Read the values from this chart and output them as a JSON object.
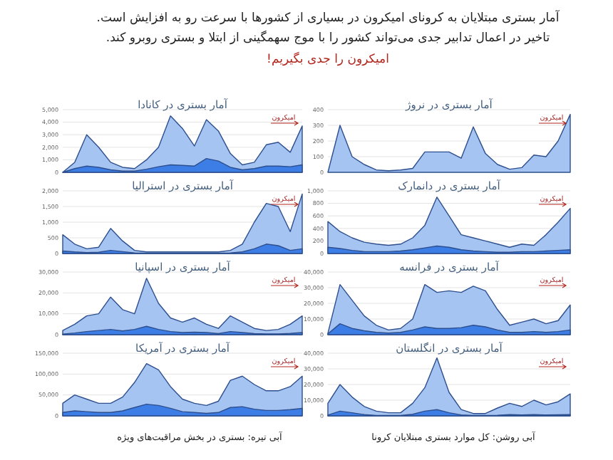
{
  "chart_data": [
    {
      "type": "other",
      "title": "آمار بستری مبتلایان به کرونای امیکرون در بسیاری از کشورها با سرعت رو به افزایش است.",
      "subtitle": "تاخیر در اعمال تدابیر جدی می‌تواند کشور را با موج سهمگینی از ابتلا و بستری روبرو کند.",
      "annotations": [
        "امیکرون را جدی بگیریم!",
        "آبی روشن: کل موارد بستری مبتلایان کرونا",
        "آبی تیره: بستری در بخش مراقبت‌های ویژه"
      ]
    },
    {
      "type": "area",
      "title": "آمار بستری در نروژ",
      "annotations": [
        "امیکرون"
      ],
      "grid": "y",
      "categories": [
        null,
        null,
        null,
        null,
        null,
        null,
        null,
        null,
        null,
        null,
        null,
        null,
        null,
        null,
        null,
        null,
        null,
        null,
        null,
        null,
        null
      ],
      "ylim": [
        0,
        400
      ],
      "yticks": [
        0,
        100,
        200,
        300,
        400
      ],
      "series": [
        {
          "color": "#a6c4f2",
          "values": [
            0,
            300,
            100,
            50,
            15,
            10,
            15,
            25,
            130,
            130,
            130,
            90,
            290,
            120,
            50,
            20,
            30,
            110,
            100,
            200,
            370
          ]
        }
      ]
    },
    {
      "type": "area",
      "title": "آمار بستری در کانادا",
      "annotations": [
        "امیکرون"
      ],
      "grid": "y",
      "categories": [
        null,
        null,
        null,
        null,
        null,
        null,
        null,
        null,
        null,
        null,
        null,
        null,
        null,
        null,
        null,
        null,
        null,
        null,
        null,
        null,
        null
      ],
      "ylim": [
        0,
        5000
      ],
      "yticks": [
        0,
        {
          "value": 1000,
          "label": "1,000"
        },
        {
          "value": 2000,
          "label": "2,000"
        },
        {
          "value": 3000,
          "label": "3,000"
        },
        {
          "value": 4000,
          "label": "4,000"
        },
        {
          "value": 5000,
          "label": "5,000"
        }
      ],
      "series": [
        {
          "color": "#a6c4f2",
          "values": [
            0,
            800,
            3000,
            2000,
            800,
            400,
            300,
            1000,
            2000,
            4500,
            3500,
            2100,
            4200,
            3300,
            1500,
            600,
            800,
            2200,
            2400,
            1600,
            3700
          ]
        },
        {
          "color": "#3d7ee6",
          "values": [
            0,
            300,
            500,
            400,
            200,
            100,
            100,
            250,
            450,
            600,
            550,
            500,
            1100,
            900,
            400,
            200,
            300,
            500,
            500,
            450,
            600
          ]
        }
      ]
    },
    {
      "type": "area",
      "title": "آمار بستری در دانمارک",
      "annotations": [
        "امیکرون"
      ],
      "grid": "y",
      "categories": [
        null,
        null,
        null,
        null,
        null,
        null,
        null,
        null,
        null,
        null,
        null,
        null,
        null,
        null,
        null,
        null,
        null,
        null,
        null,
        null,
        null
      ],
      "ylim": [
        0,
        1000
      ],
      "yticks": [
        0,
        200,
        400,
        600,
        800,
        {
          "value": 1000,
          "label": "1,000"
        }
      ],
      "series": [
        {
          "color": "#a6c4f2",
          "values": [
            510,
            350,
            250,
            180,
            150,
            130,
            150,
            250,
            450,
            900,
            600,
            300,
            250,
            200,
            150,
            100,
            150,
            130,
            300,
            500,
            720
          ]
        },
        {
          "color": "#3d7ee6",
          "values": [
            100,
            80,
            50,
            30,
            30,
            30,
            40,
            60,
            90,
            120,
            100,
            60,
            40,
            30,
            20,
            20,
            30,
            30,
            40,
            50,
            60
          ]
        }
      ]
    },
    {
      "type": "area",
      "title": "آمار بستری در استرالیا",
      "annotations": [
        "امیکرون"
      ],
      "grid": "y",
      "categories": [
        null,
        null,
        null,
        null,
        null,
        null,
        null,
        null,
        null,
        null,
        null,
        null,
        null,
        null,
        null,
        null,
        null,
        null,
        null,
        null,
        null
      ],
      "ylim": [
        0,
        2000
      ],
      "yticks": [
        0,
        500,
        {
          "value": 1000,
          "label": "1,000"
        },
        {
          "value": 1500,
          "label": "1,500"
        },
        {
          "value": 2000,
          "label": "2,000"
        }
      ],
      "series": [
        {
          "color": "#a6c4f2",
          "values": [
            600,
            300,
            150,
            200,
            800,
            400,
            100,
            50,
            50,
            50,
            50,
            50,
            50,
            50,
            100,
            300,
            1000,
            1600,
            1500,
            700,
            1900
          ]
        },
        {
          "color": "#3d7ee6",
          "values": [
            80,
            50,
            30,
            40,
            100,
            60,
            20,
            10,
            10,
            10,
            10,
            10,
            10,
            10,
            20,
            50,
            150,
            300,
            250,
            100,
            150
          ]
        }
      ]
    },
    {
      "type": "area",
      "title": "آمار بستری در فرانسه",
      "annotations": [
        "امیکرون"
      ],
      "grid": "y",
      "categories": [
        null,
        null,
        null,
        null,
        null,
        null,
        null,
        null,
        null,
        null,
        null,
        null,
        null,
        null,
        null,
        null,
        null,
        null,
        null,
        null,
        null
      ],
      "ylim": [
        0,
        40000
      ],
      "yticks": [
        0,
        {
          "value": 10000,
          "label": "10,000"
        },
        {
          "value": 20000,
          "label": "20,000"
        },
        {
          "value": 30000,
          "label": "30,000"
        },
        {
          "value": 40000,
          "label": "40,000"
        }
      ],
      "series": [
        {
          "color": "#a6c4f2",
          "values": [
            1000,
            32000,
            22000,
            12000,
            6000,
            3000,
            4000,
            10000,
            32000,
            27000,
            28000,
            27000,
            31000,
            28000,
            16000,
            6000,
            8000,
            10000,
            7000,
            9000,
            19000
          ]
        },
        {
          "color": "#3d7ee6",
          "values": [
            500,
            7000,
            4000,
            2500,
            1500,
            1000,
            1500,
            3000,
            5000,
            4000,
            4000,
            4500,
            6000,
            5000,
            3000,
            1500,
            1500,
            2000,
            1500,
            2000,
            3000
          ]
        }
      ]
    },
    {
      "type": "area",
      "title": "آمار بستری در اسپانیا",
      "annotations": [
        "امیکرون"
      ],
      "grid": "y",
      "categories": [
        null,
        null,
        null,
        null,
        null,
        null,
        null,
        null,
        null,
        null,
        null,
        null,
        null,
        null,
        null,
        null,
        null,
        null,
        null,
        null,
        null
      ],
      "ylim": [
        0,
        30000
      ],
      "yticks": [
        0,
        {
          "value": 10000,
          "label": "10,000"
        },
        {
          "value": 20000,
          "label": "20,000"
        },
        {
          "value": 30000,
          "label": "30,000"
        }
      ],
      "series": [
        {
          "color": "#a6c4f2",
          "values": [
            2000,
            5000,
            9000,
            10000,
            18000,
            12000,
            10000,
            27000,
            15000,
            8000,
            6000,
            8000,
            5000,
            3000,
            9000,
            6000,
            3000,
            2000,
            2500,
            5000,
            9000
          ]
        },
        {
          "color": "#3d7ee6",
          "values": [
            300,
            800,
            1500,
            2000,
            2500,
            1800,
            2500,
            4000,
            2500,
            1500,
            1000,
            1200,
            1000,
            500,
            1500,
            1000,
            500,
            400,
            400,
            600,
            1000
          ]
        }
      ]
    },
    {
      "type": "area",
      "title": "آمار بستری در انگلستان",
      "annotations": [
        "امیکرون"
      ],
      "grid": "y",
      "categories": [
        null,
        null,
        null,
        null,
        null,
        null,
        null,
        null,
        null,
        null,
        null,
        null,
        null,
        null,
        null,
        null,
        null,
        null,
        null,
        null,
        null
      ],
      "ylim": [
        0,
        40000
      ],
      "yticks": [
        0,
        {
          "value": 10000,
          "label": "10,000"
        },
        {
          "value": 20000,
          "label": "20,000"
        },
        {
          "value": 30000,
          "label": "30,000"
        },
        {
          "value": 40000,
          "label": "40,000"
        }
      ],
      "series": [
        {
          "color": "#a6c4f2",
          "values": [
            8000,
            20000,
            12000,
            6000,
            3000,
            2000,
            2000,
            8000,
            18000,
            37000,
            15000,
            4000,
            1500,
            1500,
            5000,
            8000,
            6000,
            10000,
            7000,
            9000,
            14000
          ]
        },
        {
          "color": "#3d7ee6",
          "values": [
            500,
            3000,
            2000,
            800,
            300,
            200,
            300,
            1000,
            3000,
            4000,
            2000,
            600,
            200,
            200,
            400,
            800,
            600,
            800,
            600,
            700,
            800
          ]
        }
      ]
    },
    {
      "type": "area",
      "title": "آمار بستری در آمریکا",
      "annotations": [
        "امیکرون"
      ],
      "grid": "y",
      "categories": [
        null,
        null,
        null,
        null,
        null,
        null,
        null,
        null,
        null,
        null,
        null,
        null,
        null,
        null,
        null,
        null,
        null,
        null,
        null,
        null,
        null
      ],
      "ylim": [
        0,
        150000
      ],
      "yticks": [
        0,
        {
          "value": 50000,
          "label": "50,000"
        },
        {
          "value": 100000,
          "label": "100,000"
        },
        {
          "value": 150000,
          "label": "150,000"
        }
      ],
      "series": [
        {
          "color": "#a6c4f2",
          "values": [
            30000,
            50000,
            40000,
            30000,
            30000,
            45000,
            80000,
            125000,
            110000,
            70000,
            40000,
            30000,
            25000,
            35000,
            85000,
            95000,
            75000,
            60000,
            60000,
            70000,
            95000
          ]
        },
        {
          "color": "#3d7ee6",
          "values": [
            8000,
            12000,
            10000,
            8000,
            8000,
            12000,
            20000,
            28000,
            25000,
            18000,
            10000,
            8000,
            6000,
            8000,
            20000,
            22000,
            16000,
            13000,
            13000,
            15000,
            18000
          ]
        }
      ]
    }
  ]
}
